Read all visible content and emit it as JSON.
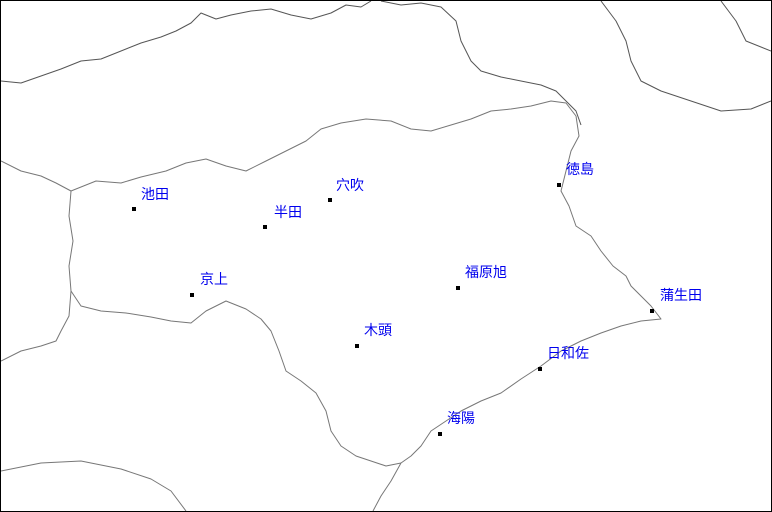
{
  "map": {
    "label_color": "#0000ee",
    "marker_color": "#000000",
    "cities": [
      {
        "name": "池田",
        "id": "ikeda"
      },
      {
        "name": "半田",
        "id": "handa"
      },
      {
        "name": "穴吹",
        "id": "anabuki"
      },
      {
        "name": "徳島",
        "id": "tokushima"
      },
      {
        "name": "京上",
        "id": "kyojo"
      },
      {
        "name": "福原旭",
        "id": "fukuhara-asahi"
      },
      {
        "name": "蒲生田",
        "id": "gamoda"
      },
      {
        "name": "木頭",
        "id": "kito"
      },
      {
        "name": "日和佐",
        "id": "hiwasa"
      },
      {
        "name": "海陽",
        "id": "kaiyo"
      }
    ]
  }
}
